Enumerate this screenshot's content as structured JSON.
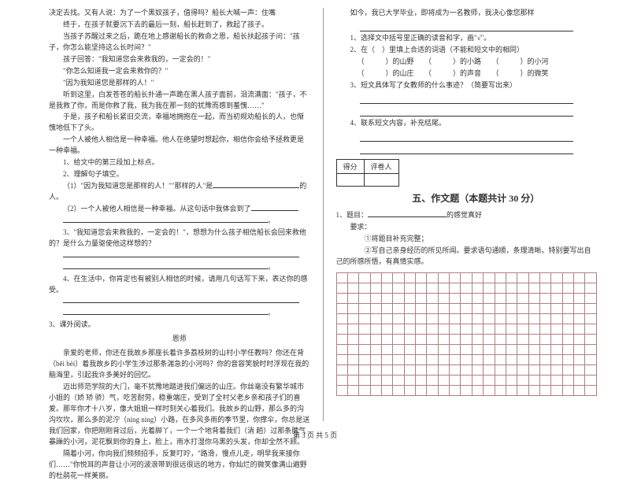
{
  "left": {
    "para1": "决定去找。又有人说：为了一个黑奴孩子，值得吗？船长大喊一声：住嘴",
    "para2": "终于，在孩子就要沉下去的最后一刻，船长赶到了，救起了孩子。",
    "para3": "当孩子苏醒过来之后，跪在地上感谢船长的救命之恩，船长扶起孩子问：\"孩子，你怎么能坚持这么长时间？\"",
    "para4": "孩子回答：\"我知道您会来救我的，一定会的！\"",
    "para5": "\"你怎么知道我一定会来救你的？\"",
    "para6": "\"因为我知道您是那样的人！\"",
    "para7": "听到这里，白发苍苍的船长扑通一声跪在黑人孩子面前，泪流满面：\"孩子，不是我救了你，而是你救了我，我为我在那一刻的犹豫而感到羞愧……\"",
    "para8": "于是，孩子和船长紧旧交流，幸福地拥抱在一起，而当初规劝船长的人，也惭愧地低下了头。",
    "para9": "一个人被他人相信是一种幸福。他人在绝望时想起你，相信你会给予拯救更是一种幸福。",
    "q1": "1、给文中的第三段加上标点。",
    "q2": "2、理解句子填空。",
    "q2a": "（1）\"因为我知道您是那样的人！\"\"那样的人\"是",
    "q2a_end": "的人。",
    "q2b": "（2）一个人被他人相信是一种幸福。从这句话中我体会到了",
    "q3": "3、\"我知道您会来救我的，一定会的！\"，想想为什么孩子相信船长会回来救他的？是什么力量驱使他这样想的？",
    "q4": "4、在生活中，你肯定也有被别人相信的时候，请用几句话写下来，表达你的感受。",
    "r3_title": "3、课外阅读。",
    "essay_title": "恩师",
    "e1": "亲爱的老师，你还在我故乡那座长着许多荔枝树的山村小学任教吗？你还在背（bēi bèi）着我故乡的小学生涉过那条湍急的小河吗？你的音容笑貌时时浮现在我的脑海里，引起我许多美好的回忆。",
    "e2": "迈出师范学院的大门，毫不犹豫地踏进我们偏远的山庄。你丝毫没有繁华城市小姐的（娇 矫 骄）气，吃苦耐劳，稳重端庄，受到了全村父老乡亲和孩子们的喜爱。那年你才十八岁，像大姐姐一样时刻关心着我们。我故乡的山野，那么多的沟沟坎坎，那么多的泥泞（níng ning）小路，在多风多雨的季节里，你撑伞，你总是送我们回家，你把刚刚背过后，光着脚丫，一个一个地背着我们（淌 趟）过那条脾气暴躁的小河，泥花飘到你的身上，脸上，雨水打湿你乌黑的头发，你却全然不顾。",
    "e3": "隔着小河，你向我们频频招手，反复叮咛，\"路滑，慢点儿走，明早我来接你们……\"你悦耳的声音让小河的波浪带到很远很远的地方，你灿烂的微笑像满山遍野的杜鹃花一样美丽。"
  },
  "right": {
    "r1": "如今，我已大学毕业，即将成为一名教师，我决心像您那样",
    "r_q1": "1、选择文中括号里正确的读音和字，画\"√\"。",
    "r_q2": "2、在（　）里填上合适的词语（不能和短文中的相同）",
    "r_q2a_l": "（　　　）的山野　　（　　　）的小路　　（　　　）的小河",
    "r_q2a_r": "（　　　）的山庄　　（　　　）的声音　　（　　　）的微笑",
    "r_q3": "3、短文具体写了女教师的什么事迹？（简要写出来）",
    "r_q4": "4、联系短文内容，补充结尾。",
    "score_l": "得分",
    "score_r": "评卷人",
    "section5": "五、作文题（本题共计 30 分）",
    "w1": "1、题目：",
    "w1_end": "的感觉真好",
    "w2": "要求：",
    "w2a": "①将题目补充完整；",
    "w2b": "②写自己亲身经历的所见所闻。要求语句通顺，条理清晰。特别要写出自己的所感所悟，有真情实感。"
  },
  "grid": {
    "rows": 12,
    "cols": 23
  },
  "footer": "第 3 页 共 5 页"
}
